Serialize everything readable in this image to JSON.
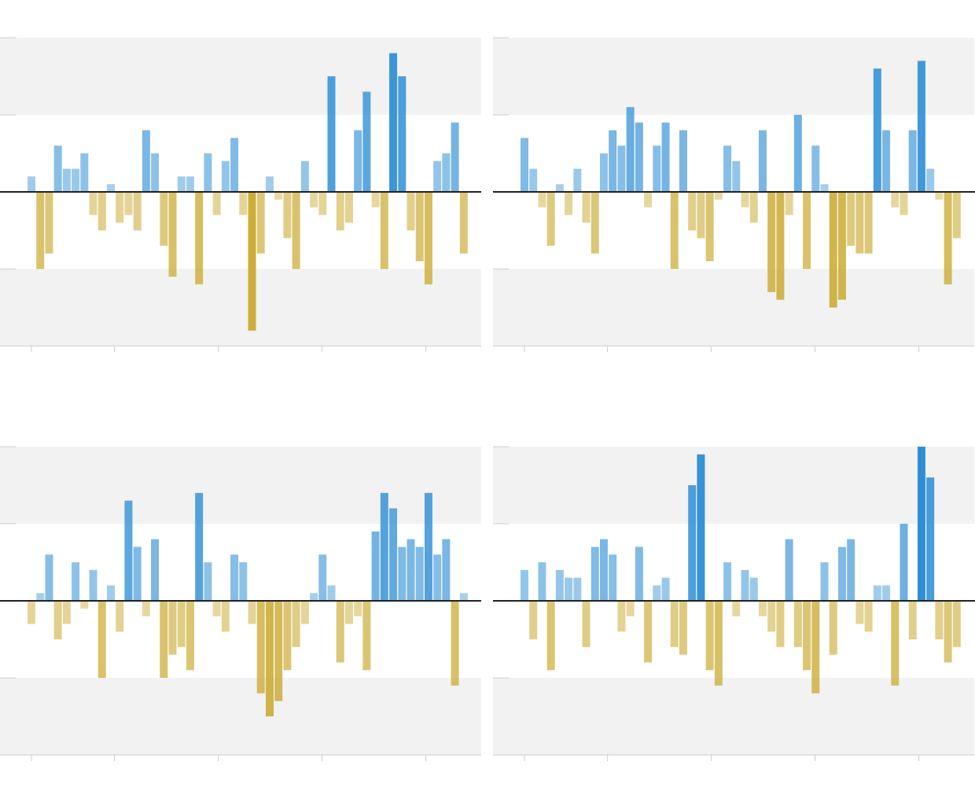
{
  "chart_data": [
    {
      "type": "bar",
      "x": [
        0,
        0.85,
        1.7,
        2.55,
        3.4,
        4.25,
        5.1,
        5.95,
        6.8,
        7.65,
        8.5,
        9.35,
        10.2,
        11.05,
        11.9,
        12.75,
        13.6,
        14.45,
        15.3,
        16.15,
        17,
        17.85,
        18.7,
        19.55,
        20.4,
        21.25,
        22.1,
        22.95,
        23.8,
        24.65,
        25.5,
        26.35,
        27.2,
        28.05,
        28.9,
        29.75,
        30.6,
        31.45,
        32.3,
        33.15,
        34,
        34.85,
        35.7,
        36.55,
        37.4,
        38.25,
        39.1,
        39.95,
        40.8,
        41.65
      ],
      "values": [
        0.2,
        -1.0,
        -0.8,
        0.6,
        0.3,
        0.3,
        0.5,
        -0.3,
        -0.5,
        0.1,
        -0.4,
        -0.3,
        -0.5,
        0.8,
        0.5,
        -0.7,
        -1.1,
        0.2,
        0.2,
        -1.2,
        0.5,
        -0.3,
        0.4,
        0.7,
        -0.3,
        -1.8,
        -0.8,
        0.2,
        -0.1,
        -0.6,
        -1.0,
        0.4,
        -0.2,
        -0.3,
        1.5,
        -0.5,
        -0.4,
        0.8,
        1.3,
        -0.2,
        -1.0,
        1.8,
        1.5,
        -0.5,
        -0.9,
        -1.2,
        0.4,
        0.5,
        0.9,
        -0.8
      ],
      "pos_color": "#2f8fd6",
      "neg_color": "#c9a82c",
      "xlim": [
        -3.03,
        43.33
      ],
      "xticks": [
        0,
        8,
        18,
        28,
        38
      ],
      "ylim": [
        -2,
        2
      ],
      "yticks": [
        -2,
        -1,
        0,
        1,
        2
      ],
      "grid": true
    },
    {
      "type": "bar",
      "x": [
        0,
        0.85,
        1.7,
        2.55,
        3.4,
        4.25,
        5.1,
        5.95,
        6.8,
        7.65,
        8.5,
        9.35,
        10.2,
        11.05,
        11.9,
        12.75,
        13.6,
        14.45,
        15.3,
        16.15,
        17,
        17.85,
        18.7,
        19.55,
        20.4,
        21.25,
        22.1,
        22.95,
        23.8,
        24.65,
        25.5,
        26.35,
        27.2,
        28.05,
        28.9,
        29.75,
        30.6,
        31.45,
        32.3,
        33.15,
        34,
        34.85,
        35.7,
        36.55,
        37.4,
        38.25,
        39.1,
        39.95,
        40.8,
        41.65
      ],
      "values": [
        0.7,
        0.3,
        -0.2,
        -0.7,
        0.1,
        -0.3,
        0.3,
        -0.4,
        -0.8,
        0.5,
        0.8,
        0.6,
        1.1,
        0.9,
        -0.2,
        0.6,
        0.9,
        -1.0,
        0.8,
        -0.5,
        -0.6,
        -0.9,
        -0.1,
        0.6,
        0.4,
        -0.2,
        -0.4,
        0.8,
        -1.3,
        -1.4,
        -0.3,
        1.0,
        -1.0,
        0.6,
        0.1,
        -1.5,
        -1.4,
        -0.7,
        -0.8,
        -0.8,
        1.6,
        0.8,
        -0.2,
        -0.3,
        0.8,
        1.7,
        0.3,
        -0.1,
        -1.2,
        -0.6
      ],
      "pos_color": "#2f8fd6",
      "neg_color": "#c9a82c",
      "xlim": [
        -3.03,
        43.33
      ],
      "xticks": [
        0,
        8,
        18,
        28,
        38
      ],
      "ylim": [
        -2,
        2
      ],
      "yticks": [
        -2,
        -1,
        0,
        1,
        2
      ],
      "grid": true
    },
    {
      "type": "bar",
      "x": [
        0,
        0.85,
        1.7,
        2.55,
        3.4,
        4.25,
        5.1,
        5.95,
        6.8,
        7.65,
        8.5,
        9.35,
        10.2,
        11.05,
        11.9,
        12.75,
        13.6,
        14.45,
        15.3,
        16.15,
        17,
        17.85,
        18.7,
        19.55,
        20.4,
        21.25,
        22.1,
        22.95,
        23.8,
        24.65,
        25.5,
        26.35,
        27.2,
        28.05,
        28.9,
        29.75,
        30.6,
        31.45,
        32.3,
        33.15,
        34,
        34.85,
        35.7,
        36.55,
        37.4,
        38.25,
        39.1,
        39.95,
        40.8,
        41.65
      ],
      "values": [
        -0.3,
        0.1,
        0.6,
        -0.5,
        -0.3,
        0.5,
        -0.1,
        0.4,
        -1.0,
        0.2,
        -0.4,
        1.3,
        0.7,
        -0.2,
        0.8,
        -1.0,
        -0.7,
        -0.6,
        -0.9,
        1.4,
        0.5,
        -0.2,
        -0.4,
        0.6,
        0.5,
        -0.3,
        -1.2,
        -1.5,
        -1.3,
        -0.9,
        -0.6,
        -0.3,
        0.1,
        0.6,
        0.2,
        -0.8,
        -0.3,
        -0.2,
        -0.9,
        0.9,
        1.4,
        1.2,
        0.7,
        0.8,
        0.7,
        1.4,
        0.6,
        0.8,
        -1.1,
        0.1
      ],
      "pos_color": "#2f8fd6",
      "neg_color": "#c9a82c",
      "xlim": [
        -3.03,
        43.33
      ],
      "xticks": [
        0,
        8,
        18,
        28,
        38
      ],
      "ylim": [
        -2,
        2
      ],
      "yticks": [
        -2,
        -1,
        0,
        1,
        2
      ],
      "grid": true
    },
    {
      "type": "bar",
      "x": [
        0,
        0.85,
        1.7,
        2.55,
        3.4,
        4.25,
        5.1,
        5.95,
        6.8,
        7.65,
        8.5,
        9.35,
        10.2,
        11.05,
        11.9,
        12.75,
        13.6,
        14.45,
        15.3,
        16.15,
        17,
        17.85,
        18.7,
        19.55,
        20.4,
        21.25,
        22.1,
        22.95,
        23.8,
        24.65,
        25.5,
        26.35,
        27.2,
        28.05,
        28.9,
        29.75,
        30.6,
        31.45,
        32.3,
        33.15,
        34,
        34.85,
        35.7,
        36.55,
        37.4,
        38.25,
        39.1,
        39.95,
        40.8,
        41.65
      ],
      "values": [
        0.4,
        -0.5,
        0.5,
        -0.9,
        0.4,
        0.3,
        0.3,
        -0.6,
        0.7,
        0.8,
        0.6,
        -0.4,
        -0.2,
        0.7,
        -0.8,
        0.2,
        0.3,
        -0.6,
        -0.7,
        1.5,
        1.9,
        -0.9,
        -1.1,
        0.5,
        -0.2,
        0.4,
        0.3,
        -0.2,
        -0.4,
        -0.6,
        0.8,
        -0.6,
        -0.9,
        -1.2,
        0.5,
        -0.7,
        0.7,
        0.8,
        -0.3,
        -0.4,
        0.2,
        0.2,
        -1.1,
        1.0,
        -0.5,
        2.0,
        1.6,
        -0.5,
        -0.8,
        -0.6
      ],
      "pos_color": "#2f8fd6",
      "neg_color": "#c9a82c",
      "xlim": [
        -3.03,
        43.33
      ],
      "xticks": [
        0,
        8,
        18,
        28,
        38
      ],
      "ylim": [
        -2,
        2
      ],
      "yticks": [
        -2,
        -1,
        0,
        1,
        2
      ],
      "grid": true
    }
  ]
}
